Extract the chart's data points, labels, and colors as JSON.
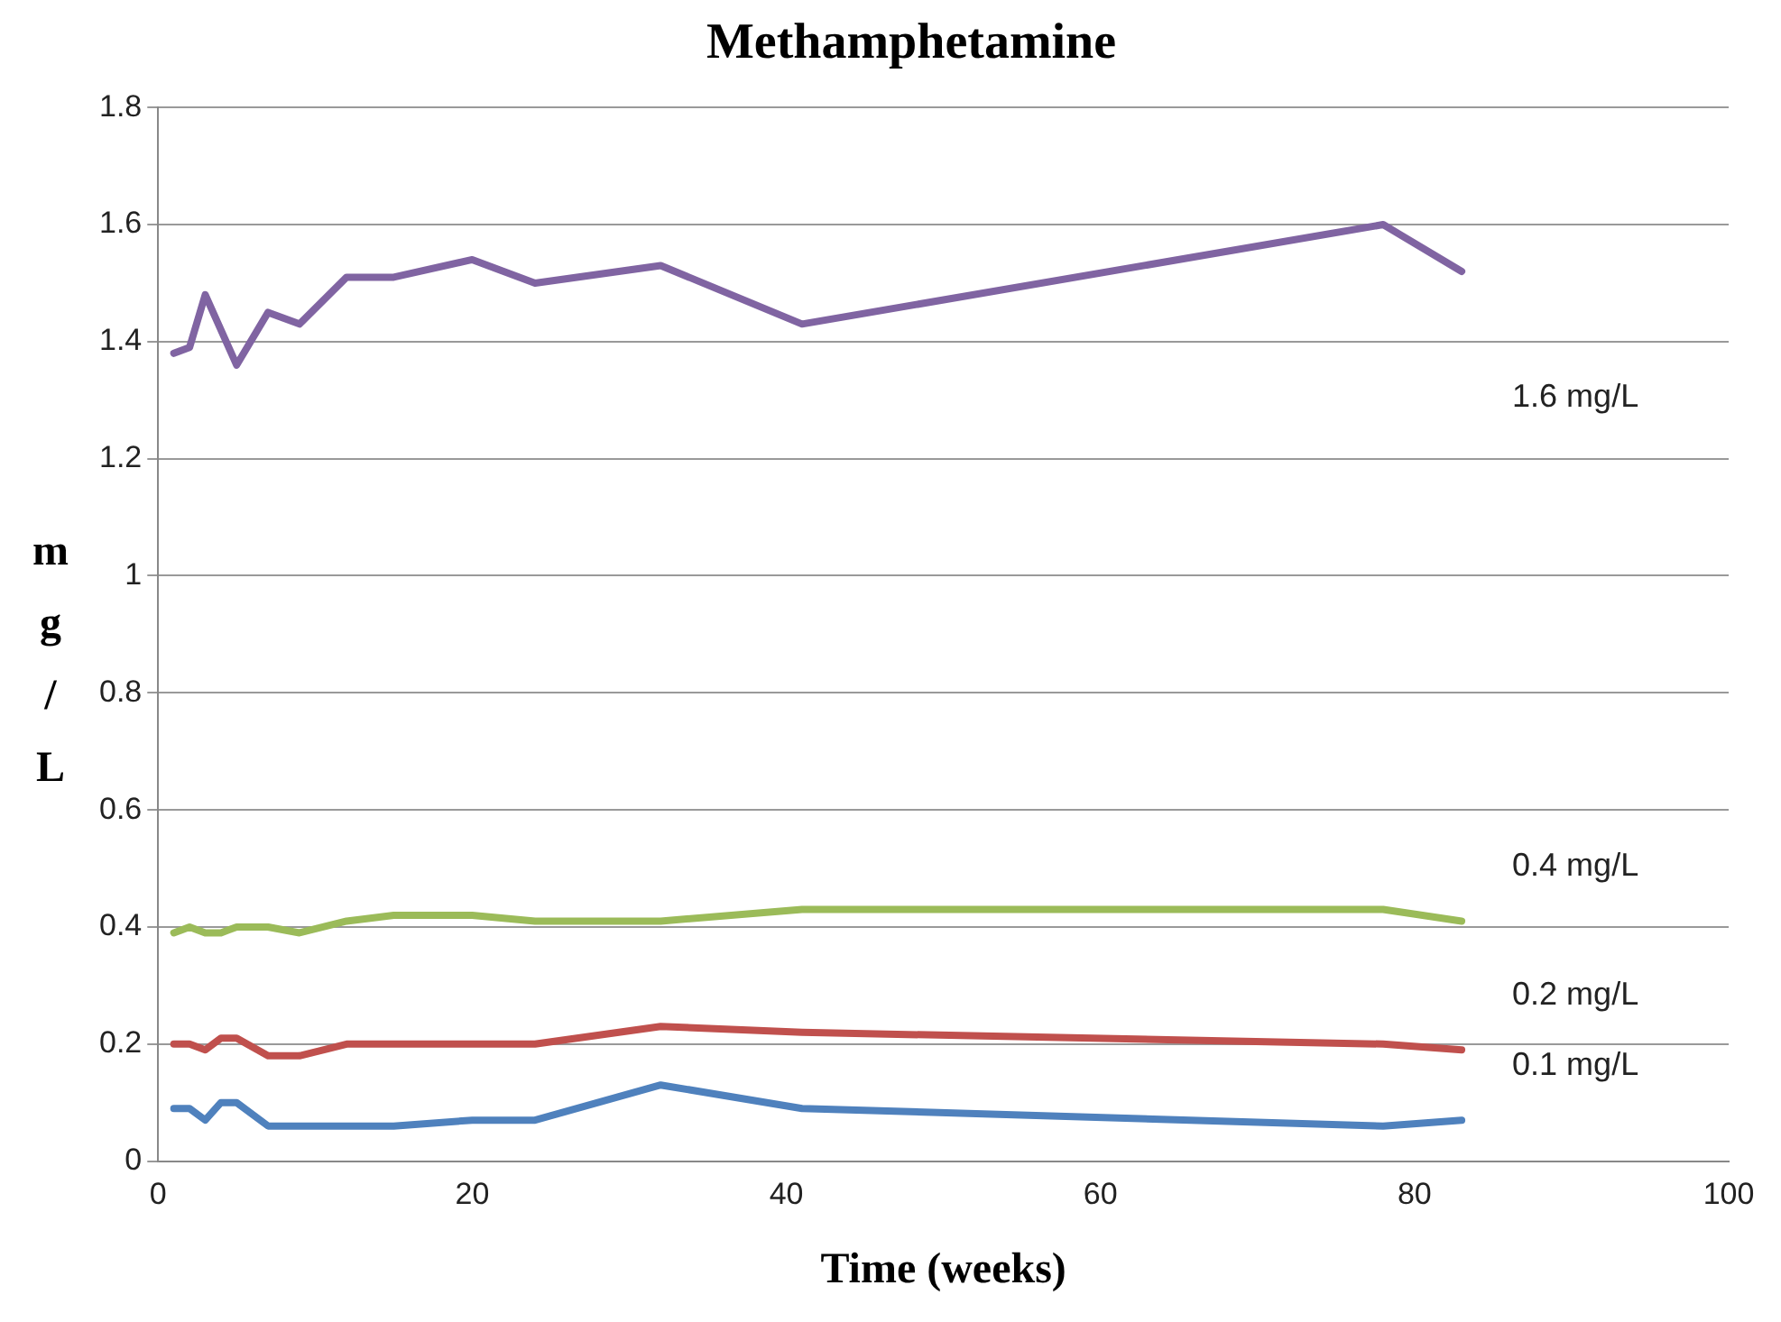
{
  "chart_data": {
    "type": "line",
    "title": "Methamphetamine",
    "xlabel": "Time (weeks)",
    "ylabel": "mg/L",
    "xlim": [
      0,
      100
    ],
    "xticks": [
      0,
      20,
      40,
      60,
      80,
      100
    ],
    "ylim": [
      0,
      1.8
    ],
    "yticks": [
      0,
      0.2,
      0.4,
      0.6,
      0.8,
      1,
      1.2,
      1.4,
      1.6,
      1.8
    ],
    "grid": "y",
    "legend": false,
    "marker": "none",
    "line_style": "solid",
    "series": [
      {
        "name": "1.6 mg/L",
        "color": "#8064a2",
        "x": [
          1,
          2,
          3,
          5,
          7,
          9,
          12,
          15,
          20,
          24,
          32,
          41,
          78,
          83
        ],
        "values": [
          1.38,
          1.39,
          1.48,
          1.36,
          1.45,
          1.43,
          1.51,
          1.51,
          1.54,
          1.5,
          1.53,
          1.43,
          1.6,
          1.52
        ]
      },
      {
        "name": "0.4 mg/L",
        "color": "#9bbb59",
        "x": [
          1,
          2,
          3,
          4,
          5,
          7,
          9,
          12,
          15,
          20,
          24,
          32,
          41,
          78,
          83
        ],
        "values": [
          0.39,
          0.4,
          0.39,
          0.39,
          0.4,
          0.4,
          0.39,
          0.41,
          0.42,
          0.42,
          0.41,
          0.41,
          0.43,
          0.43,
          0.41
        ]
      },
      {
        "name": "0.2 mg/L",
        "color": "#c0504d",
        "x": [
          1,
          2,
          3,
          4,
          5,
          7,
          9,
          12,
          24,
          32,
          41,
          78,
          83
        ],
        "values": [
          0.2,
          0.2,
          0.19,
          0.21,
          0.21,
          0.18,
          0.18,
          0.2,
          0.2,
          0.23,
          0.22,
          0.2,
          0.19
        ]
      },
      {
        "name": "0.1 mg/L",
        "color": "#4f81bd",
        "x": [
          1,
          2,
          3,
          4,
          5,
          7,
          15,
          20,
          24,
          32,
          41,
          78,
          83
        ],
        "values": [
          0.09,
          0.09,
          0.07,
          0.1,
          0.1,
          0.06,
          0.06,
          0.07,
          0.07,
          0.13,
          0.09,
          0.06,
          0.07
        ]
      }
    ]
  }
}
